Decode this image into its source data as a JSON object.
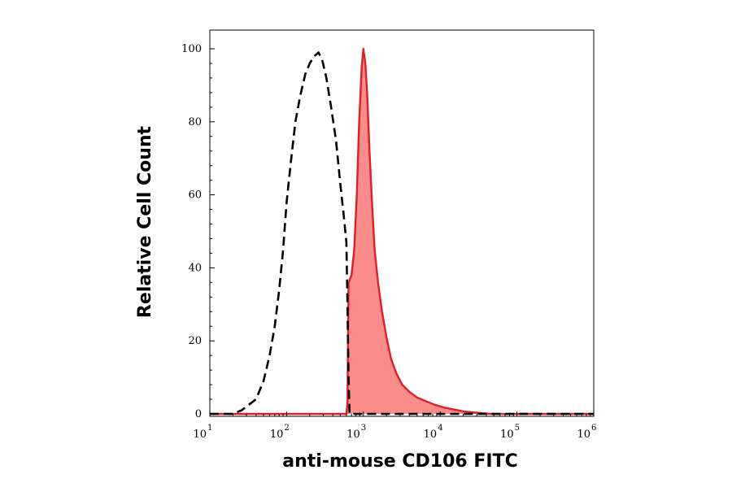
{
  "chart_data": {
    "type": "area",
    "title": "",
    "xlabel": "anti-mouse CD106 FITC",
    "ylabel": "Relative Cell Count",
    "x_scale": "log",
    "xlim": [
      10,
      1000000
    ],
    "ylim": [
      0,
      100
    ],
    "grid": false,
    "x_ticks": [
      {
        "base": "10",
        "exp": "1",
        "value": 10
      },
      {
        "base": "10",
        "exp": "2",
        "value": 100
      },
      {
        "base": "10",
        "exp": "3",
        "value": 1000
      },
      {
        "base": "10",
        "exp": "4",
        "value": 10000
      },
      {
        "base": "10",
        "exp": "5",
        "value": 100000
      },
      {
        "base": "10",
        "exp": "6",
        "value": 1000000
      }
    ],
    "y_ticks": [
      {
        "label": "0",
        "value": 0
      },
      {
        "label": "20",
        "value": 20
      },
      {
        "label": "40",
        "value": 40
      },
      {
        "label": "60",
        "value": 60
      },
      {
        "label": "80",
        "value": 80
      },
      {
        "label": "100",
        "value": 100
      }
    ],
    "series": [
      {
        "style": "dashed",
        "color": "#000000",
        "fill": "none",
        "points": [
          [
            10,
            0
          ],
          [
            20,
            0
          ],
          [
            26,
            1
          ],
          [
            30,
            2
          ],
          [
            40,
            4
          ],
          [
            50,
            9
          ],
          [
            60,
            16
          ],
          [
            70,
            24
          ],
          [
            80,
            34
          ],
          [
            90,
            45
          ],
          [
            100,
            58
          ],
          [
            115,
            70
          ],
          [
            130,
            80
          ],
          [
            150,
            87
          ],
          [
            175,
            93
          ],
          [
            200,
            96
          ],
          [
            230,
            98
          ],
          [
            260,
            99
          ],
          [
            290,
            97
          ],
          [
            330,
            92
          ],
          [
            380,
            84
          ],
          [
            440,
            75
          ],
          [
            500,
            63
          ],
          [
            550,
            55
          ],
          [
            600,
            47
          ],
          [
            620,
            30
          ],
          [
            640,
            10
          ],
          [
            660,
            0
          ],
          [
            1000000,
            0
          ]
        ]
      },
      {
        "style": "solid",
        "color": "#dd1f26",
        "fill": "#fa8c8c",
        "points": [
          [
            10,
            0
          ],
          [
            600,
            0
          ],
          [
            620,
            3
          ],
          [
            630,
            20
          ],
          [
            640,
            36
          ],
          [
            700,
            38
          ],
          [
            760,
            45
          ],
          [
            820,
            60
          ],
          [
            880,
            80
          ],
          [
            950,
            95
          ],
          [
            1000,
            100
          ],
          [
            1060,
            96
          ],
          [
            1120,
            88
          ],
          [
            1200,
            72
          ],
          [
            1300,
            57
          ],
          [
            1400,
            45
          ],
          [
            1550,
            36
          ],
          [
            1750,
            28
          ],
          [
            2000,
            21
          ],
          [
            2300,
            15
          ],
          [
            2700,
            11
          ],
          [
            3200,
            8
          ],
          [
            4000,
            6
          ],
          [
            5000,
            4.5
          ],
          [
            6500,
            3.5
          ],
          [
            8500,
            2.5
          ],
          [
            11000,
            1.8
          ],
          [
            15000,
            1.2
          ],
          [
            20000,
            0.7
          ],
          [
            27000,
            0.4
          ],
          [
            35000,
            0.2
          ],
          [
            45000,
            0
          ],
          [
            1000000,
            0
          ]
        ]
      }
    ]
  }
}
